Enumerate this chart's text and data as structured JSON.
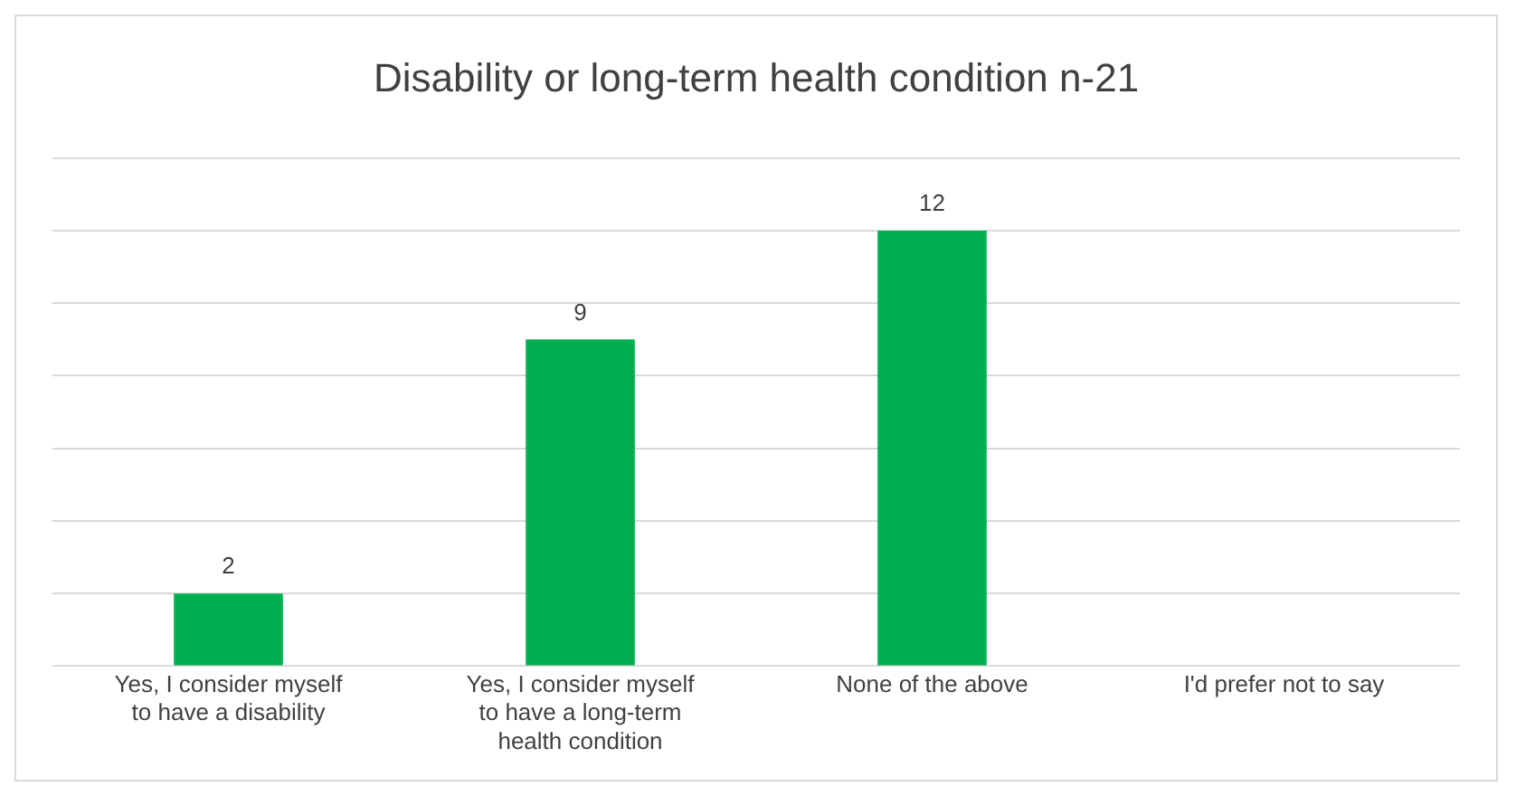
{
  "chart_data": {
    "type": "bar",
    "title": "Disability or long-term health condition n-21",
    "categories": [
      "Yes, I consider myself to have a disability",
      "Yes, I consider myself to have a long-term health condition",
      "None of the above",
      "I'd prefer not to say"
    ],
    "values": [
      2,
      9,
      12,
      null
    ],
    "color": "#00b050",
    "ylim": [
      0,
      14
    ],
    "yticks": [
      {
        "value": 0,
        "label": null
      },
      {
        "value": 2,
        "label": null
      },
      {
        "value": 4,
        "label": null
      },
      {
        "value": 6,
        "label": null
      },
      {
        "value": 8,
        "label": null
      },
      {
        "value": 10,
        "label": null
      },
      {
        "value": 12,
        "label": null
      },
      {
        "value": 14,
        "label": null
      }
    ],
    "grid": "y",
    "legend": false,
    "tick_labels": "x",
    "data_labels": true
  }
}
